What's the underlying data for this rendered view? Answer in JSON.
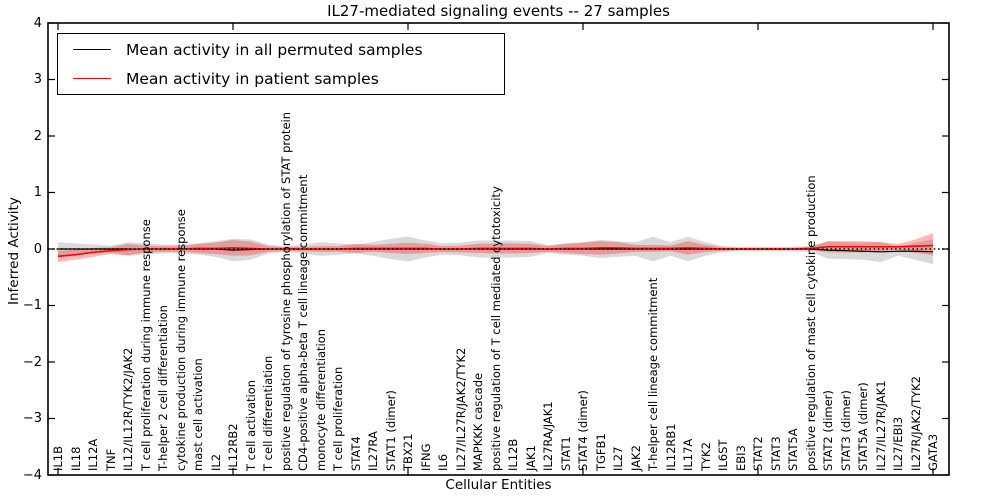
{
  "figure": {
    "title": "IL27-mediated signaling events -- 27 samples",
    "xlabel": "Cellular Entities",
    "ylabel": "Inferred Activity"
  },
  "legend": {
    "entries": [
      {
        "label": "Mean activity in all permuted samples",
        "color": "#000000"
      },
      {
        "label": "Mean activity in patient samples",
        "color": "#ff0000"
      }
    ],
    "position": "upper left"
  },
  "chart_data": {
    "type": "line",
    "title": "IL27-mediated signaling events -- 27 samples",
    "xlabel": "Cellular Entities",
    "ylabel": "Inferred Activity",
    "ylim": [
      -4,
      4
    ],
    "yticks": [
      4,
      3,
      2,
      1,
      0,
      -1,
      -2,
      -3,
      -4
    ],
    "grid": false,
    "legend_position": "upper left",
    "colors": {
      "permuted_line": "#000000",
      "patient_line": "#ff0000",
      "permuted_band": "rgba(0,0,0,0.15)",
      "patient_band": "rgba(255,0,0,0.28)"
    },
    "zero_line": {
      "y": 0,
      "style": "dotted",
      "color": "#000000"
    },
    "categories": [
      "IL1B",
      "IL18",
      "IL12A",
      "TNF",
      "IL12/IL12R/TYK2/JAK2",
      "T cell proliferation during immune response",
      "T-helper 2 cell differentiation",
      "cytokine production during immune response",
      "mast cell activation",
      "IL2",
      "IL12RB2",
      "T cell activation",
      "T cell differentiation",
      "positive regulation of tyrosine phosphorylation of STAT protein",
      "CD4-positive alpha-beta T cell lineage commitment",
      "monocyte differentiation",
      "T cell proliferation",
      "STAT4",
      "IL27RA",
      "STAT1 (dimer)",
      "TBX21",
      "IFNG",
      "IL6",
      "IL27/IL27R/JAK2/TYK2",
      "MAPKKK cascade",
      "positive regulation of T cell mediated cytotoxicity",
      "IL12B",
      "JAK1",
      "IL27RA/JAK1",
      "STAT1",
      "STAT4 (dimer)",
      "TGFB1",
      "IL27",
      "JAK2",
      "T-helper cell lineage commitment",
      "IL12RB1",
      "IL17A",
      "TYK2",
      "IL6ST",
      "EBI3",
      "STAT2",
      "STAT3",
      "STAT5A",
      "positive regulation of mast cell cytokine production",
      "STAT2 (dimer)",
      "STAT3 (dimer)",
      "STAT5A (dimer)",
      "IL27/IL27R/JAK1",
      "IL27/EBI3",
      "IL27R/JAK2/TYK2",
      "GATA3"
    ],
    "series": [
      {
        "name": "Mean activity in all permuted samples",
        "color": "#000000",
        "style": "solid",
        "values": [
          0,
          0,
          0,
          0,
          0,
          0,
          0,
          0,
          0,
          0,
          -0.02,
          -0.01,
          0,
          0,
          0,
          0,
          0,
          0,
          0,
          0,
          0,
          0,
          0,
          0,
          0,
          0,
          0,
          0,
          0,
          0,
          0,
          0,
          0,
          0,
          0,
          0,
          0,
          0,
          0,
          0,
          0,
          0,
          0,
          0,
          -0.02,
          -0.03,
          -0.04,
          -0.05,
          -0.04,
          -0.04,
          -0.05
        ]
      },
      {
        "name": "Mean activity in patient samples",
        "color": "#ff0000",
        "style": "solid",
        "values": [
          -0.13,
          -0.1,
          -0.06,
          -0.03,
          -0.01,
          0,
          0,
          0,
          0.01,
          0.01,
          0.02,
          0.01,
          0,
          0,
          0,
          0,
          0,
          0.01,
          0.01,
          0.01,
          0.01,
          0.01,
          0,
          0,
          0.01,
          0.01,
          0.01,
          0.01,
          0,
          0.01,
          0.01,
          0.02,
          0.02,
          0.01,
          0.01,
          0.01,
          0.02,
          0.01,
          0,
          0,
          0,
          0,
          0,
          0.01,
          0.04,
          0.04,
          0.04,
          0.04,
          0.04,
          0.05,
          0.06
        ]
      }
    ],
    "bands": [
      {
        "name": "permuted samples std band",
        "color": "rgba(0,0,0,0.15)",
        "lo": [
          -0.12,
          -0.1,
          -0.08,
          -0.06,
          -0.12,
          -0.1,
          -0.08,
          -0.08,
          -0.1,
          -0.14,
          -0.22,
          -0.19,
          -0.08,
          -0.05,
          -0.08,
          -0.12,
          -0.1,
          -0.08,
          -0.12,
          -0.18,
          -0.22,
          -0.15,
          -0.1,
          -0.11,
          -0.15,
          -0.15,
          -0.15,
          -0.14,
          -0.07,
          -0.1,
          -0.12,
          -0.16,
          -0.14,
          -0.12,
          -0.22,
          -0.12,
          -0.22,
          -0.12,
          -0.05,
          -0.04,
          -0.04,
          -0.04,
          -0.04,
          -0.05,
          -0.17,
          -0.18,
          -0.19,
          -0.23,
          -0.12,
          -0.19,
          -0.27
        ],
        "hi": [
          0.12,
          0.1,
          0.08,
          0.06,
          0.12,
          0.1,
          0.08,
          0.08,
          0.1,
          0.14,
          0.18,
          0.17,
          0.08,
          0.05,
          0.08,
          0.12,
          0.1,
          0.08,
          0.12,
          0.18,
          0.22,
          0.15,
          0.1,
          0.11,
          0.15,
          0.15,
          0.15,
          0.14,
          0.07,
          0.1,
          0.12,
          0.16,
          0.14,
          0.12,
          0.22,
          0.12,
          0.22,
          0.12,
          0.05,
          0.04,
          0.04,
          0.04,
          0.04,
          0.05,
          0.13,
          0.12,
          0.11,
          0.13,
          0.04,
          0.11,
          0.17
        ]
      },
      {
        "name": "patient samples std band",
        "color": "rgba(255,0,0,0.28)",
        "lo": [
          -0.23,
          -0.19,
          -0.14,
          -0.09,
          -0.11,
          -0.06,
          -0.05,
          -0.05,
          -0.07,
          -0.09,
          -0.12,
          -0.11,
          -0.05,
          -0.03,
          -0.04,
          -0.05,
          -0.05,
          -0.07,
          -0.05,
          -0.07,
          -0.09,
          -0.07,
          -0.05,
          -0.06,
          -0.07,
          -0.08,
          -0.08,
          -0.07,
          -0.05,
          -0.07,
          -0.09,
          -0.1,
          -0.08,
          -0.05,
          -0.05,
          -0.04,
          -0.1,
          -0.05,
          -0.03,
          -0.02,
          -0.02,
          -0.02,
          -0.02,
          -0.02,
          -0.06,
          -0.06,
          -0.06,
          -0.04,
          -0.01,
          -0.07,
          -0.11
        ],
        "hi": [
          -0.03,
          -0.01,
          0.02,
          0.03,
          0.09,
          0.06,
          0.05,
          0.05,
          0.09,
          0.11,
          0.16,
          0.13,
          0.05,
          0.03,
          0.04,
          0.05,
          0.05,
          0.09,
          0.07,
          0.09,
          0.11,
          0.09,
          0.05,
          0.06,
          0.09,
          0.1,
          0.1,
          0.09,
          0.05,
          0.09,
          0.11,
          0.14,
          0.12,
          0.07,
          0.07,
          0.06,
          0.14,
          0.07,
          0.03,
          0.02,
          0.02,
          0.02,
          0.02,
          0.04,
          0.14,
          0.14,
          0.14,
          0.12,
          0.09,
          0.17,
          0.28
        ]
      }
    ]
  }
}
